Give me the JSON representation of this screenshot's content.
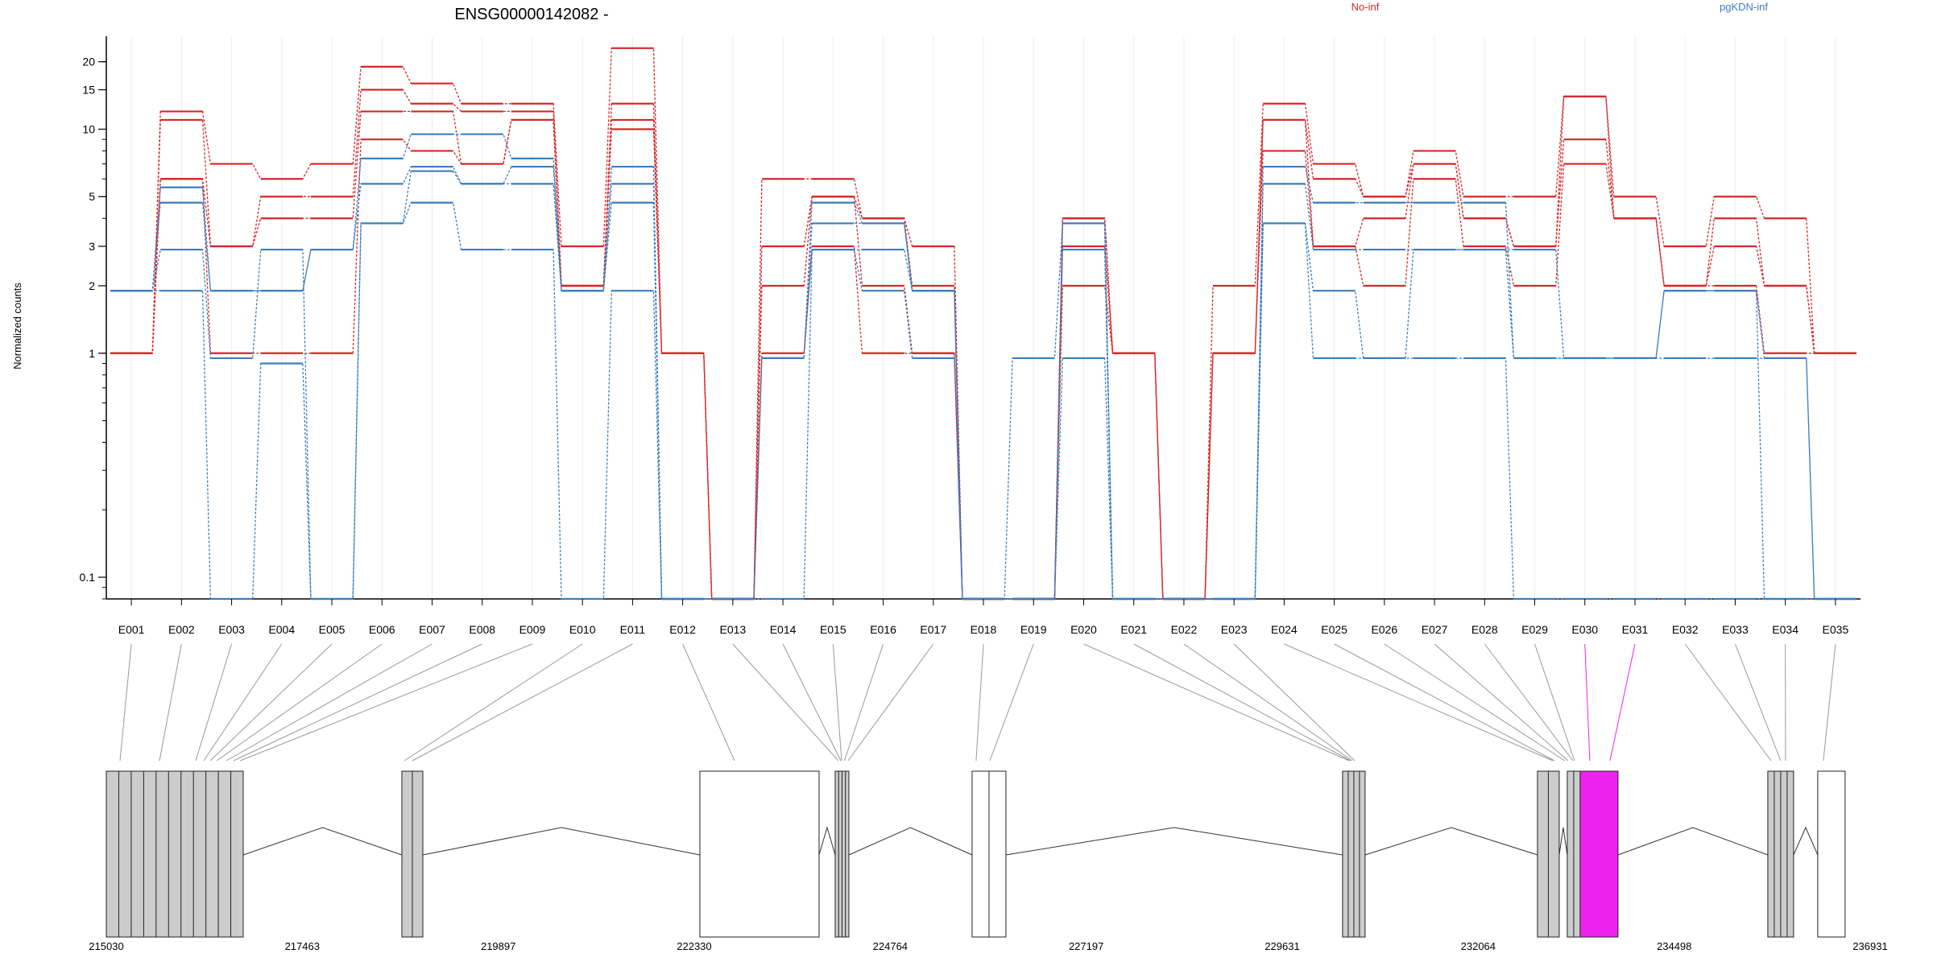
{
  "chart_data": {
    "type": "line",
    "title": "ENSG00000142082 -",
    "ylabel": "Normalized counts",
    "y_scale": "log",
    "ylim": [
      0.08,
      26
    ],
    "y_ticks": [
      0.1,
      1,
      2,
      3,
      5,
      10,
      15,
      20
    ],
    "y_tick_labels": [
      "0.1",
      "1",
      "2",
      "3",
      "5",
      "10",
      "15",
      "20"
    ],
    "categories": [
      "E001",
      "E002",
      "E003",
      "E004",
      "E005",
      "E006",
      "E007",
      "E008",
      "E009",
      "E010",
      "E011",
      "E012",
      "E013",
      "E014",
      "E015",
      "E016",
      "E017",
      "E018",
      "E019",
      "E020",
      "E021",
      "E022",
      "E023",
      "E024",
      "E025",
      "E026",
      "E027",
      "E028",
      "E029",
      "E030",
      "E031",
      "E032",
      "E033",
      "E034",
      "E035"
    ],
    "legend": [
      {
        "name": "No-inf",
        "color": "#d62728"
      },
      {
        "name": "pgKDN-inf",
        "color": "#3a7ebf"
      }
    ],
    "series": [
      {
        "group": "No-inf",
        "values": [
          1.0,
          12.0,
          7.0,
          6.0,
          7.0,
          19.0,
          16.0,
          13.0,
          13.0,
          3.0,
          23.0,
          1.0,
          0.08,
          6.0,
          6.0,
          4.0,
          3.0,
          0.08,
          0.08,
          4.0,
          1.0,
          0.08,
          2.0,
          13.0,
          7.0,
          5.0,
          8.0,
          5.0,
          5.0,
          14.0,
          5.0,
          3.0,
          5.0,
          4.0,
          1.0
        ]
      },
      {
        "group": "No-inf",
        "values": [
          1.0,
          11.0,
          3.0,
          5.0,
          5.0,
          15.0,
          13.0,
          12.0,
          12.0,
          2.0,
          13.0,
          1.0,
          0.08,
          3.0,
          5.0,
          4.0,
          2.0,
          0.08,
          0.08,
          4.0,
          1.0,
          0.08,
          1.0,
          11.0,
          6.0,
          5.0,
          7.0,
          4.0,
          3.0,
          14.0,
          4.0,
          2.0,
          4.0,
          2.0,
          1.0
        ]
      },
      {
        "group": "No-inf",
        "values": [
          1.0,
          6.0,
          3.0,
          4.0,
          4.0,
          12.0,
          12.0,
          7.0,
          11.0,
          2.0,
          11.0,
          1.0,
          0.08,
          2.0,
          5.0,
          2.0,
          1.0,
          0.08,
          0.08,
          3.0,
          1.0,
          0.08,
          1.0,
          11.0,
          3.0,
          4.0,
          7.0,
          4.0,
          3.0,
          9.0,
          4.0,
          2.0,
          3.0,
          2.0,
          1.0
        ]
      },
      {
        "group": "No-inf",
        "values": [
          1.0,
          6.0,
          1.0,
          1.0,
          1.0,
          9.0,
          8.0,
          7.0,
          11.0,
          2.0,
          10.0,
          1.0,
          0.08,
          1.0,
          3.0,
          1.0,
          1.0,
          0.08,
          0.08,
          2.0,
          1.0,
          0.08,
          1.0,
          8.0,
          3.0,
          2.0,
          6.0,
          3.0,
          2.0,
          7.0,
          4.0,
          2.0,
          2.0,
          1.0,
          1.0
        ]
      },
      {
        "group": "pgKDN-inf",
        "values": [
          1.9,
          5.5,
          1.9,
          1.9,
          2.9,
          7.4,
          9.5,
          9.5,
          7.4,
          1.9,
          6.8,
          0.08,
          0.08,
          0.95,
          4.7,
          3.8,
          1.9,
          0.08,
          0.95,
          3.8,
          0.08,
          0.08,
          0.08,
          6.8,
          4.7,
          4.7,
          4.7,
          4.7,
          0.95,
          0.95,
          0.95,
          0.95,
          0.95,
          0.95,
          0.08
        ]
      },
      {
        "group": "pgKDN-inf",
        "values": [
          1.9,
          4.7,
          1.9,
          1.9,
          2.9,
          5.7,
          6.8,
          5.7,
          6.8,
          1.9,
          5.7,
          0.08,
          0.08,
          0.95,
          3.8,
          3.8,
          1.9,
          0.08,
          0.08,
          3.8,
          0.08,
          0.08,
          0.08,
          5.7,
          2.9,
          2.9,
          2.9,
          2.9,
          2.9,
          0.95,
          0.95,
          1.9,
          1.9,
          0.95,
          0.08
        ]
      },
      {
        "group": "pgKDN-inf",
        "values": [
          1.9,
          2.9,
          0.95,
          2.9,
          0.08,
          3.8,
          6.5,
          5.7,
          5.7,
          1.9,
          4.7,
          0.08,
          0.08,
          0.95,
          2.9,
          2.9,
          1.9,
          0.08,
          0.08,
          2.9,
          0.08,
          0.08,
          0.08,
          3.8,
          1.9,
          0.95,
          2.9,
          2.9,
          0.95,
          0.95,
          0.95,
          1.9,
          1.9,
          0.08,
          0.08
        ]
      },
      {
        "group": "pgKDN-inf",
        "values": [
          1.9,
          1.9,
          0.08,
          0.9,
          0.08,
          3.8,
          4.7,
          2.9,
          2.9,
          0.08,
          1.9,
          0.08,
          0.08,
          0.08,
          2.9,
          1.9,
          0.95,
          0.08,
          0.08,
          0.95,
          0.08,
          0.08,
          0.08,
          3.8,
          0.95,
          0.95,
          0.95,
          0.95,
          0.08,
          0.08,
          0.08,
          0.08,
          0.08,
          0.08,
          0.08
        ]
      }
    ],
    "grid": true,
    "legend_placement": "top",
    "gene_model": {
      "coord_ticks": [
        215030,
        217463,
        219897,
        222330,
        224764,
        227197,
        229631,
        232064,
        234498,
        236931
      ],
      "exon_groups": [
        {
          "start": 215030,
          "end": 216730,
          "parts": 11,
          "color": "#cccccc"
        },
        {
          "start": 218700,
          "end": 218960,
          "parts": 2,
          "color": "#cccccc"
        },
        {
          "start": 222400,
          "end": 223880,
          "parts": 1,
          "color": "#ffffff"
        },
        {
          "start": 224080,
          "end": 224250,
          "parts": 4,
          "color": "#cccccc"
        },
        {
          "start": 225780,
          "end": 226200,
          "parts": 2,
          "color": "#ffffff"
        },
        {
          "start": 230380,
          "end": 230660,
          "parts": 4,
          "color": "#cccccc"
        },
        {
          "start": 232800,
          "end": 233070,
          "parts": 2,
          "color": "#cccccc"
        },
        {
          "start": 233170,
          "end": 233330,
          "parts": 2,
          "color": "#cccccc"
        },
        {
          "start": 233330,
          "end": 233800,
          "parts": 1,
          "color": "#ee22ee"
        },
        {
          "start": 235660,
          "end": 235980,
          "parts": 4,
          "color": "#cccccc"
        },
        {
          "start": 236280,
          "end": 236620,
          "parts": 1,
          "color": "#ffffff"
        }
      ],
      "exon_coords": [
        215200,
        215690,
        216140,
        216240,
        216320,
        216400,
        216520,
        216610,
        216690,
        218730,
        218830,
        222830,
        224120,
        224150,
        224160,
        224195,
        224240,
        225830,
        226000,
        230460,
        230480,
        230500,
        230530,
        232990,
        233010,
        233140,
        233180,
        233240,
        233260,
        233450,
        233700,
        235700,
        235820,
        235880,
        236350
      ],
      "highlight_exons": [
        "E030",
        "E031"
      ],
      "highlight_color": "#ee22ee"
    }
  }
}
